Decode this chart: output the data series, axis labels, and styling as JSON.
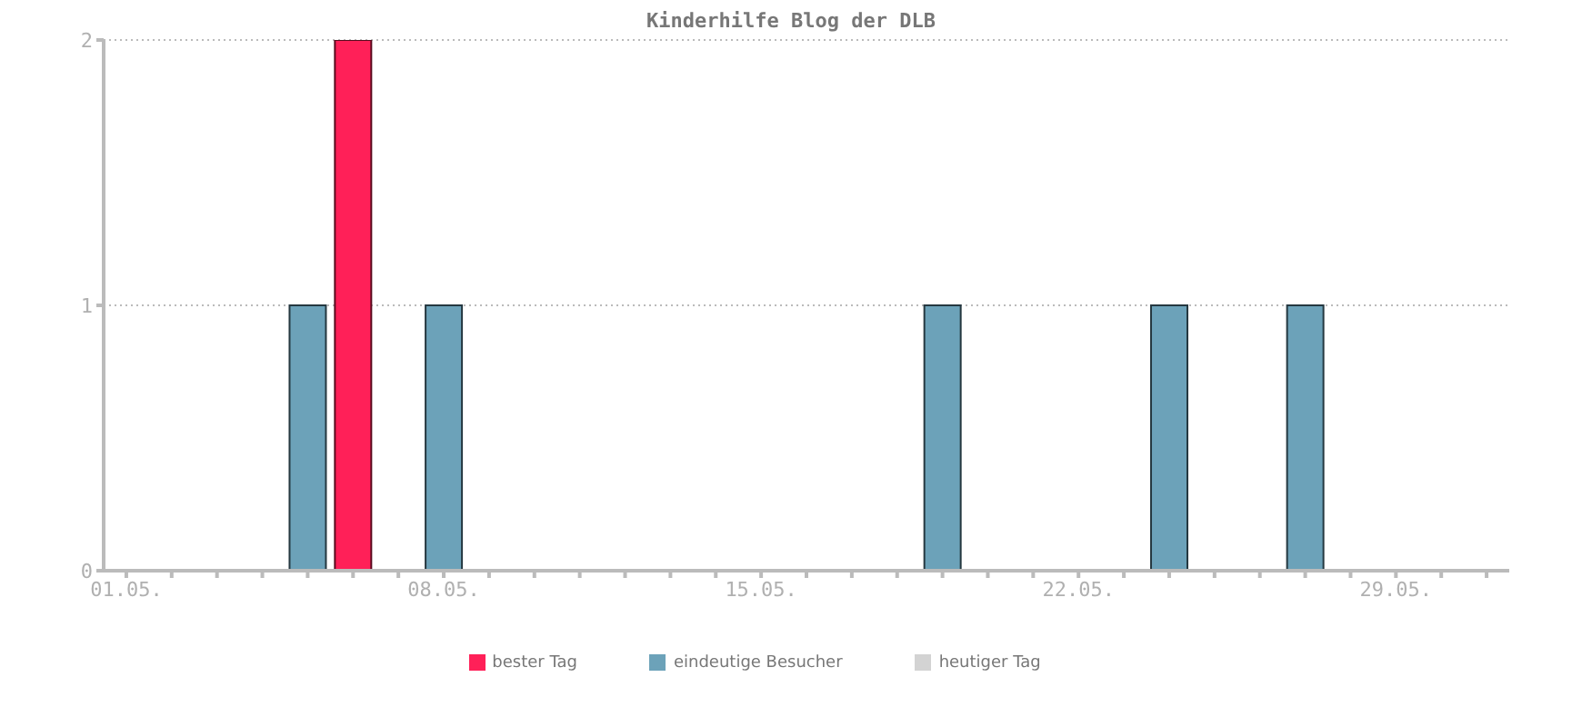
{
  "chart_data": {
    "type": "bar",
    "title": "Kinderhilfe Blog der DLB",
    "stacked": true,
    "categories": [
      "01.05.",
      null,
      null,
      null,
      null,
      null,
      null,
      "08.05.",
      null,
      null,
      null,
      null,
      null,
      null,
      "15.05.",
      null,
      null,
      null,
      null,
      null,
      null,
      "22.05.",
      null,
      null,
      null,
      null,
      null,
      null,
      "29.05.",
      null,
      null
    ],
    "series": [
      {
        "name": "eindeutige Besucher",
        "color": "#6ca2b9",
        "values": [
          null,
          null,
          null,
          null,
          1,
          null,
          null,
          1,
          null,
          null,
          null,
          null,
          null,
          null,
          null,
          null,
          null,
          null,
          1,
          null,
          null,
          null,
          null,
          1,
          null,
          null,
          1,
          null,
          null,
          null,
          null
        ]
      },
      {
        "name": "bester Tag",
        "color": "#ff2058",
        "values": [
          null,
          null,
          null,
          null,
          null,
          2,
          null,
          null,
          null,
          null,
          null,
          null,
          null,
          null,
          null,
          null,
          null,
          null,
          null,
          null,
          null,
          null,
          null,
          null,
          null,
          null,
          null,
          null,
          null,
          null,
          null
        ]
      },
      {
        "name": "heutiger Tag",
        "color": "#d3d3d3",
        "values": [
          null,
          null,
          null,
          null,
          null,
          null,
          null,
          null,
          null,
          null,
          null,
          null,
          null,
          null,
          null,
          null,
          null,
          null,
          null,
          null,
          null,
          null,
          null,
          null,
          null,
          null,
          null,
          null,
          null,
          null,
          null
        ]
      }
    ],
    "ylim": [
      0,
      2
    ],
    "yticks": [
      0,
      1,
      2
    ],
    "grid": "y",
    "legend": "bottom"
  }
}
